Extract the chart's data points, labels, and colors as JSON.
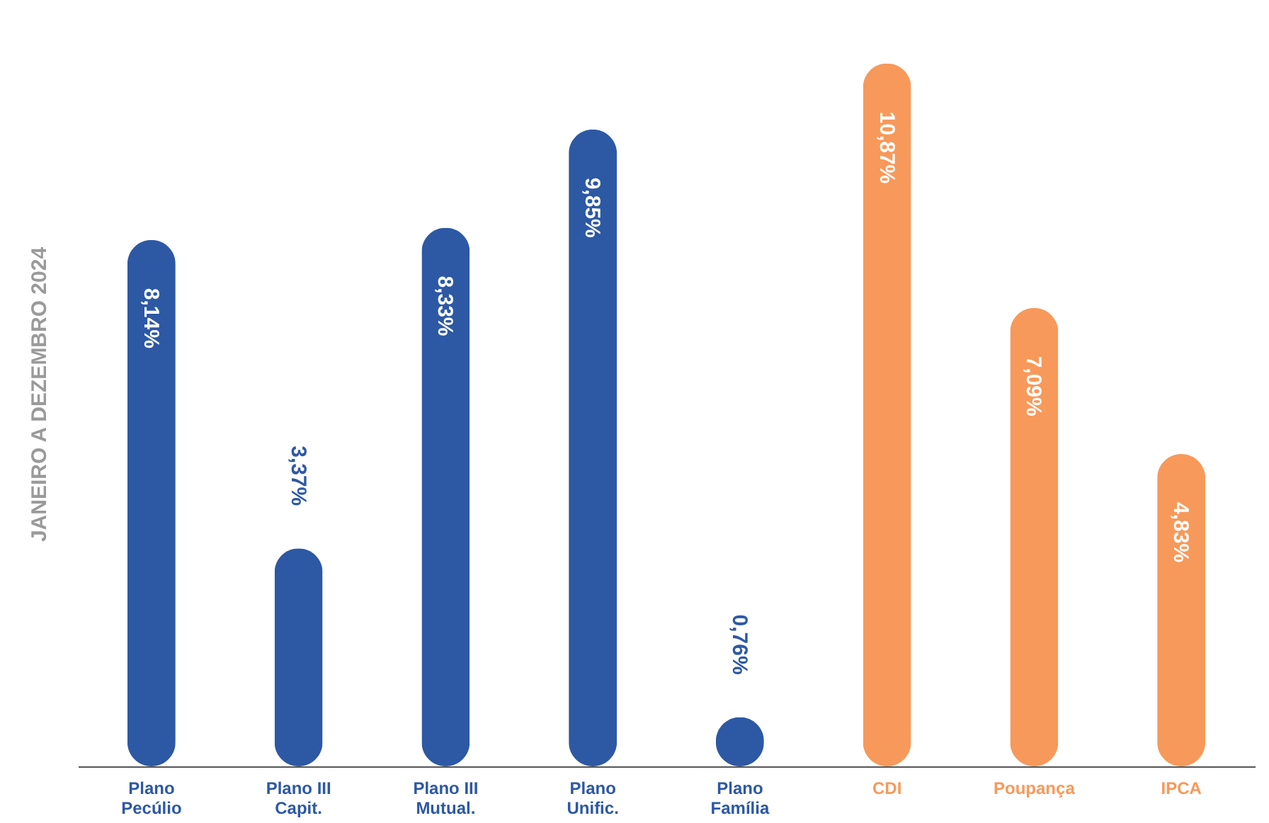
{
  "chart_data": {
    "type": "bar",
    "ylabel": "JANEIRO A DEZEMBRO 2024",
    "categories": [
      "Plano\nPecúlio",
      "Plano III\nCapit.",
      "Plano III\nMutual.",
      "Plano\nUnific.",
      "Plano\nFamília",
      "CDI",
      "Poupança",
      "IPCA"
    ],
    "values": [
      8.14,
      3.37,
      8.33,
      9.85,
      0.76,
      10.87,
      7.09,
      4.83
    ],
    "colors": [
      "#2d58a4",
      "#2d58a4",
      "#2d58a4",
      "#2d58a4",
      "#2d58a4",
      "#f7995a",
      "#f7995a",
      "#f7995a"
    ],
    "value_labels": [
      "8,14%",
      "3,37%",
      "8,33%",
      "9,85%",
      "0,76%",
      "10,87%",
      "7,09%",
      "4,83%"
    ],
    "grid": false
  }
}
